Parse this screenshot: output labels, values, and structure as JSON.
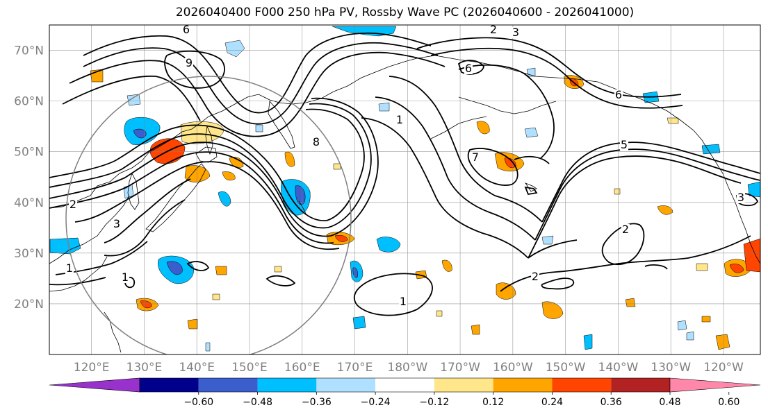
{
  "title": "2026040400 F000 250 hPa PV, Rossby Wave PC (2026040600 - 2026041000)",
  "map": {
    "projection": "equirectangular",
    "lon_range": [
      112,
      247
    ],
    "lat_range": [
      10,
      75
    ],
    "lat_labels": [
      "70°N",
      "60°N",
      "50°N",
      "40°N",
      "30°N",
      "20°N"
    ],
    "lat_values": [
      70,
      60,
      50,
      40,
      30,
      20
    ],
    "lon_labels": [
      "120°E",
      "130°E",
      "140°E",
      "150°E",
      "160°E",
      "170°E",
      "180°W",
      "170°W",
      "160°W",
      "150°W",
      "140°W",
      "130°W",
      "120°W"
    ],
    "lon_values": [
      120,
      130,
      140,
      150,
      160,
      170,
      180,
      190,
      200,
      210,
      220,
      230,
      240
    ],
    "contour_labels": [
      "1",
      "1",
      "1",
      "1",
      "2",
      "2",
      "2",
      "2",
      "3",
      "3",
      "3",
      "5",
      "6",
      "6",
      "6",
      "7",
      "8",
      "9"
    ]
  },
  "colorbar": {
    "ticks": [
      "−0.60",
      "−0.48",
      "−0.36",
      "−0.24",
      "−0.12",
      "0.12",
      "0.24",
      "0.36",
      "0.48",
      "0.60"
    ],
    "colors": [
      "#9932CC",
      "#00008B",
      "#3A5FCD",
      "#00BFFF",
      "#B0E0FF",
      "#FFFFFF",
      "#FFE68A",
      "#FFA500",
      "#FF4500",
      "#B22222",
      "#FF88AA"
    ]
  },
  "anomaly_colors": {
    "neg_light": "#B0E0FF",
    "neg_mid": "#00BFFF",
    "neg_strong": "#3A5FCD",
    "pos_light": "#FFE68A",
    "pos_mid": "#FFA500",
    "pos_strong": "#FF4500"
  }
}
